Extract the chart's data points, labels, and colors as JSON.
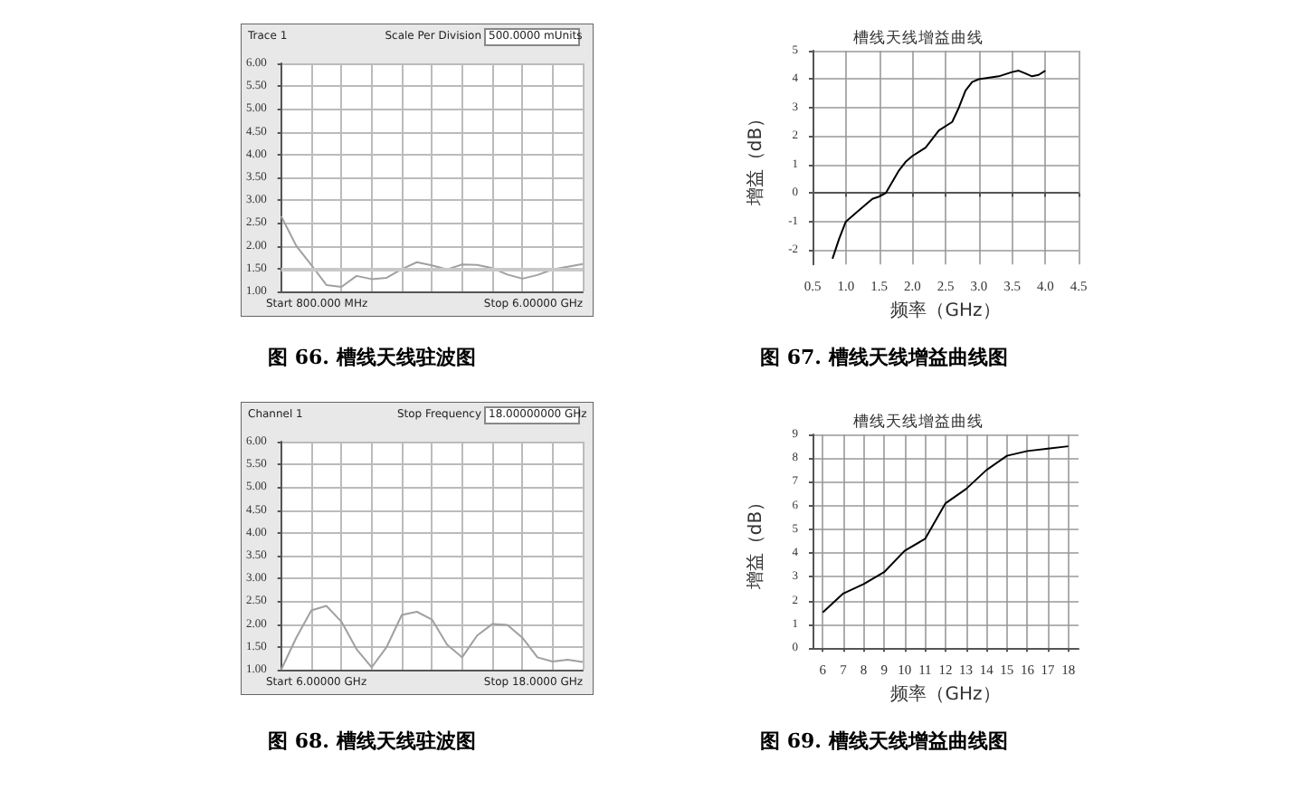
{
  "chart_data": [
    {
      "type": "line",
      "color": "#a0a0a0",
      "categories": [
        null,
        null,
        null,
        null,
        null,
        null,
        null,
        null,
        null,
        null,
        null,
        null,
        null,
        null,
        null,
        null,
        null,
        null,
        null,
        null,
        null
      ],
      "values": [
        2.65,
        2.0,
        1.58,
        1.14,
        1.1,
        1.34,
        1.27,
        1.3,
        1.49,
        1.64,
        1.57,
        1.48,
        1.59,
        1.58,
        1.51,
        1.37,
        1.28,
        1.36,
        1.48,
        1.54,
        1.6
      ],
      "ylim": [
        1,
        6
      ],
      "yticks": [
        {
          "value": 1,
          "label": "1.00"
        },
        {
          "value": 1.5,
          "label": "1.50"
        },
        {
          "value": 2,
          "label": "2.00"
        },
        {
          "value": 2.5,
          "label": "2.50"
        },
        {
          "value": 3,
          "label": "3.00"
        },
        {
          "value": 3.5,
          "label": "3.50"
        },
        {
          "value": 4,
          "label": "4.00"
        },
        {
          "value": 4.5,
          "label": "4.50"
        },
        {
          "value": 5,
          "label": "5.00"
        },
        {
          "value": 5.5,
          "label": "5.50"
        },
        {
          "value": 6,
          "label": "6.00"
        }
      ],
      "grid": true,
      "tick_labels": "y",
      "ref_lines": [
        {
          "axis": "y",
          "value": 1.5,
          "color": "#c8c8c8"
        }
      ],
      "annotations": [
        "Trace 1",
        "Scale Per Division",
        "500.0000 mUnits",
        "Start 800.000 MHz",
        "Stop 6.00000 GHz",
        "图 66. 槽线天线驻波图"
      ]
    },
    {
      "type": "line",
      "color": "#000000",
      "title": "槽线天线增益曲线",
      "xlabel": "频率（GHz）",
      "ylabel": "增益（dB）",
      "x": [
        0.8,
        0.9,
        1.0,
        1.2,
        1.4,
        1.5,
        1.6,
        1.8,
        1.9,
        2.0,
        2.2,
        2.4,
        2.6,
        2.7,
        2.8,
        2.9,
        3.0,
        3.3,
        3.5,
        3.6,
        3.7,
        3.8,
        3.9,
        4.0
      ],
      "values": [
        -2.3,
        -1.6,
        -1.0,
        -0.6,
        -0.2,
        -0.12,
        0,
        0.8,
        1.1,
        1.3,
        1.6,
        2.2,
        2.5,
        3.0,
        3.6,
        3.9,
        4.0,
        4.1,
        4.25,
        4.3,
        4.2,
        4.1,
        4.15,
        4.3
      ],
      "xlim": [
        0.5,
        4.5
      ],
      "xticks": [
        {
          "value": 0.5,
          "label": "0.5"
        },
        {
          "value": 1,
          "label": "1.0"
        },
        {
          "value": 1.5,
          "label": "1.5"
        },
        {
          "value": 2,
          "label": "2.0"
        },
        {
          "value": 2.5,
          "label": "2.5"
        },
        {
          "value": 3,
          "label": "3.0"
        },
        {
          "value": 3.5,
          "label": "3.5"
        },
        {
          "value": 4,
          "label": "4.0"
        },
        {
          "value": 4.5,
          "label": "4.5"
        }
      ],
      "ylim": [
        -2.5,
        5
      ],
      "yticks": [
        -2,
        -1,
        0,
        1,
        2,
        3,
        4,
        5
      ],
      "grid": true,
      "annotations": [
        "图 67. 槽线天线增益曲线图"
      ]
    },
    {
      "type": "line",
      "color": "#a0a0a0",
      "categories": [
        null,
        null,
        null,
        null,
        null,
        null,
        null,
        null,
        null,
        null,
        null,
        null,
        null,
        null,
        null,
        null,
        null,
        null,
        null,
        null,
        null
      ],
      "values": [
        1.0,
        1.7,
        2.3,
        2.4,
        2.05,
        1.45,
        1.05,
        1.5,
        2.2,
        2.27,
        2.1,
        1.55,
        1.27,
        1.75,
        2.0,
        1.98,
        1.7,
        1.27,
        1.18,
        1.22,
        1.17
      ],
      "ylim": [
        1,
        6
      ],
      "yticks": [
        {
          "value": 1,
          "label": "1.00"
        },
        {
          "value": 1.5,
          "label": "1.50"
        },
        {
          "value": 2,
          "label": "2.00"
        },
        {
          "value": 2.5,
          "label": "2.50"
        },
        {
          "value": 3,
          "label": "3.00"
        },
        {
          "value": 3.5,
          "label": "3.50"
        },
        {
          "value": 4,
          "label": "4.00"
        },
        {
          "value": 4.5,
          "label": "4.50"
        },
        {
          "value": 5,
          "label": "5.00"
        },
        {
          "value": 5.5,
          "label": "5.50"
        },
        {
          "value": 6,
          "label": "6.00"
        }
      ],
      "grid": true,
      "tick_labels": "y",
      "annotations": [
        "Channel 1",
        "Stop Frequency",
        "18.00000000 GHz",
        "Start 6.00000 GHz",
        "Stop 18.0000 GHz",
        "图 68. 槽线天线驻波图"
      ]
    },
    {
      "type": "line",
      "color": "#000000",
      "title": "槽线天线增益曲线",
      "xlabel": "频率（GHz）",
      "ylabel": "增益（dB）",
      "x": [
        6,
        7,
        8,
        9,
        10,
        11,
        12,
        13,
        14,
        15,
        16,
        17,
        18
      ],
      "values": [
        1.5,
        2.3,
        2.7,
        3.2,
        4.1,
        4.6,
        6.1,
        6.7,
        7.5,
        8.1,
        8.3,
        8.4,
        8.5
      ],
      "xlim": [
        5.5,
        18.5
      ],
      "xticks": [
        6,
        7,
        8,
        9,
        10,
        11,
        12,
        13,
        14,
        15,
        16,
        17,
        18
      ],
      "ylim": [
        0,
        9
      ],
      "yticks": [
        0,
        1,
        2,
        3,
        4,
        5,
        6,
        7,
        8,
        9
      ],
      "grid": true,
      "annotations": [
        "图 69. 槽线天线增益曲线图"
      ]
    }
  ]
}
